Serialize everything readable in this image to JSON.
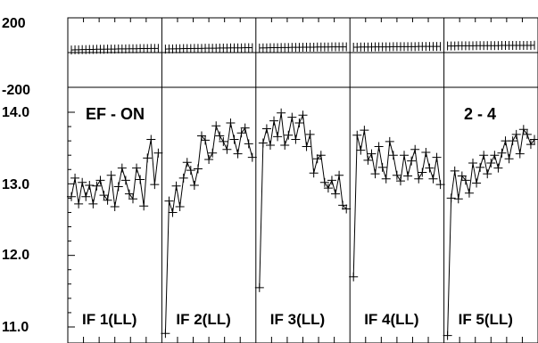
{
  "chart_data": {
    "type": "line",
    "top_panel": {
      "ylim": [
        -200,
        200
      ],
      "tick_labels": [
        "200",
        "-200"
      ],
      "series": [
        {
          "x": [
            1,
            2,
            3,
            4,
            5,
            6,
            7,
            8,
            9,
            10,
            11,
            12,
            13,
            14,
            15,
            16,
            17,
            18,
            19,
            20,
            21,
            22,
            23,
            24,
            25
          ],
          "y": [
            15,
            16,
            16,
            17,
            17,
            18,
            18,
            19,
            19,
            19,
            20,
            20,
            20,
            21,
            21,
            21,
            22,
            22,
            22,
            23,
            23,
            23,
            24,
            24,
            24
          ]
        },
        {
          "x": [
            1,
            2,
            3,
            4,
            5,
            6,
            7,
            8,
            9,
            10,
            11,
            12,
            13,
            14,
            15,
            16,
            17,
            18,
            19,
            20,
            21,
            22,
            23,
            24,
            25
          ],
          "y": [
            20,
            21,
            21,
            22,
            22,
            23,
            23,
            23,
            24,
            24,
            24,
            25,
            25,
            25,
            25,
            26,
            26,
            26,
            27,
            27,
            27,
            27,
            28,
            28,
            28
          ]
        },
        {
          "x": [
            1,
            2,
            3,
            4,
            5,
            6,
            7,
            8,
            9,
            10,
            11,
            12,
            13,
            14,
            15,
            16,
            17,
            18,
            19,
            20,
            21,
            22,
            23,
            24,
            25
          ],
          "y": [
            26,
            27,
            27,
            28,
            28,
            28,
            29,
            29,
            29,
            30,
            30,
            30,
            31,
            31,
            31,
            31,
            32,
            32,
            32,
            32,
            33,
            33,
            33,
            33,
            33
          ]
        },
        {
          "x": [
            1,
            2,
            3,
            4,
            5,
            6,
            7,
            8,
            9,
            10,
            11,
            12,
            13,
            14,
            15,
            16,
            17,
            18,
            19,
            20,
            21,
            22,
            23,
            24,
            25
          ],
          "y": [
            31,
            31,
            32,
            32,
            32,
            32,
            33,
            33,
            33,
            33,
            33,
            34,
            34,
            34,
            34,
            34,
            34,
            34,
            35,
            35,
            35,
            35,
            35,
            35,
            35
          ]
        },
        {
          "x": [
            1,
            2,
            3,
            4,
            5,
            6,
            7,
            8,
            9,
            10,
            11,
            12,
            13,
            14,
            15,
            16,
            17,
            18,
            19,
            20,
            21,
            22,
            23,
            24,
            25
          ],
          "y": [
            38,
            38,
            38,
            39,
            39,
            39,
            39,
            39,
            40,
            40,
            40,
            40,
            40,
            40,
            40,
            41,
            41,
            41,
            41,
            41,
            41,
            41,
            41,
            41,
            42
          ]
        }
      ]
    },
    "bottom_panel": {
      "ylim": [
        10.85,
        14.25
      ],
      "tick_labels": [
        "14.0",
        "13.0",
        "12.0",
        "11.0"
      ],
      "annotations": [
        "EF - ON",
        "2 - 4"
      ],
      "segments": [
        {
          "label": "IF 1(LL)",
          "x": [
            1,
            2,
            3,
            4,
            5,
            6,
            7,
            8,
            9,
            10,
            11,
            12,
            13,
            14,
            15,
            16,
            17,
            18,
            19,
            20,
            21,
            22,
            23,
            24,
            25
          ],
          "y": [
            12.82,
            13.08,
            12.72,
            13.02,
            12.82,
            12.98,
            12.72,
            12.97,
            13.05,
            12.84,
            12.77,
            13.12,
            12.68,
            12.96,
            13.22,
            13.05,
            12.86,
            12.79,
            13.22,
            13.06,
            12.69,
            13.36,
            13.62,
            12.99,
            13.43
          ]
        },
        {
          "label": "IF 2(LL)",
          "x": [
            1,
            2,
            3,
            4,
            5,
            6,
            7,
            8,
            9,
            10,
            11,
            12,
            13,
            14,
            15,
            16,
            17,
            18,
            19,
            20,
            21,
            22,
            23,
            24,
            25
          ],
          "y": [
            10.91,
            12.76,
            12.6,
            12.97,
            12.68,
            13.08,
            13.3,
            13.19,
            12.98,
            13.21,
            13.67,
            13.61,
            13.34,
            13.43,
            13.81,
            13.67,
            13.59,
            13.48,
            13.85,
            13.62,
            13.42,
            13.71,
            13.78,
            13.56,
            13.37
          ]
        },
        {
          "label": "IF 3(LL)",
          "x": [
            1,
            2,
            3,
            4,
            5,
            6,
            7,
            8,
            9,
            10,
            11,
            12,
            13,
            14,
            15,
            16,
            17,
            18,
            19,
            20,
            21,
            22,
            23,
            24,
            25
          ],
          "y": [
            11.55,
            13.57,
            13.77,
            13.54,
            13.88,
            13.66,
            13.99,
            13.54,
            13.68,
            13.93,
            13.62,
            13.85,
            13.96,
            13.52,
            13.69,
            13.15,
            13.35,
            13.4,
            13.02,
            12.94,
            13.05,
            12.86,
            13.12,
            12.7,
            12.65
          ]
        },
        {
          "label": "IF 4(LL)",
          "x": [
            1,
            2,
            3,
            4,
            5,
            6,
            7,
            8,
            9,
            10,
            11,
            12,
            13,
            14,
            15,
            16,
            17,
            18,
            19,
            20,
            21,
            22,
            23,
            24,
            25
          ],
          "y": [
            11.7,
            13.68,
            13.47,
            13.75,
            13.33,
            13.42,
            13.14,
            13.52,
            13.23,
            13.07,
            13.59,
            13.4,
            13.12,
            13.04,
            13.4,
            13.11,
            13.32,
            13.48,
            13.07,
            13.16,
            13.44,
            13.22,
            13.07,
            13.37,
            12.99
          ]
        },
        {
          "label": "IF 5(LL)",
          "x": [
            1,
            2,
            3,
            4,
            5,
            6,
            7,
            8,
            9,
            10,
            11,
            12,
            13,
            14,
            15,
            16,
            17,
            18,
            19,
            20,
            21,
            22,
            23,
            24,
            25
          ],
          "y": [
            10.88,
            12.8,
            13.18,
            12.79,
            13.11,
            13.05,
            12.87,
            13.29,
            13.01,
            13.23,
            13.4,
            13.14,
            13.29,
            13.4,
            13.22,
            13.43,
            13.6,
            13.35,
            13.6,
            13.69,
            13.42,
            13.76,
            13.69,
            13.55,
            13.62
          ]
        }
      ]
    }
  }
}
